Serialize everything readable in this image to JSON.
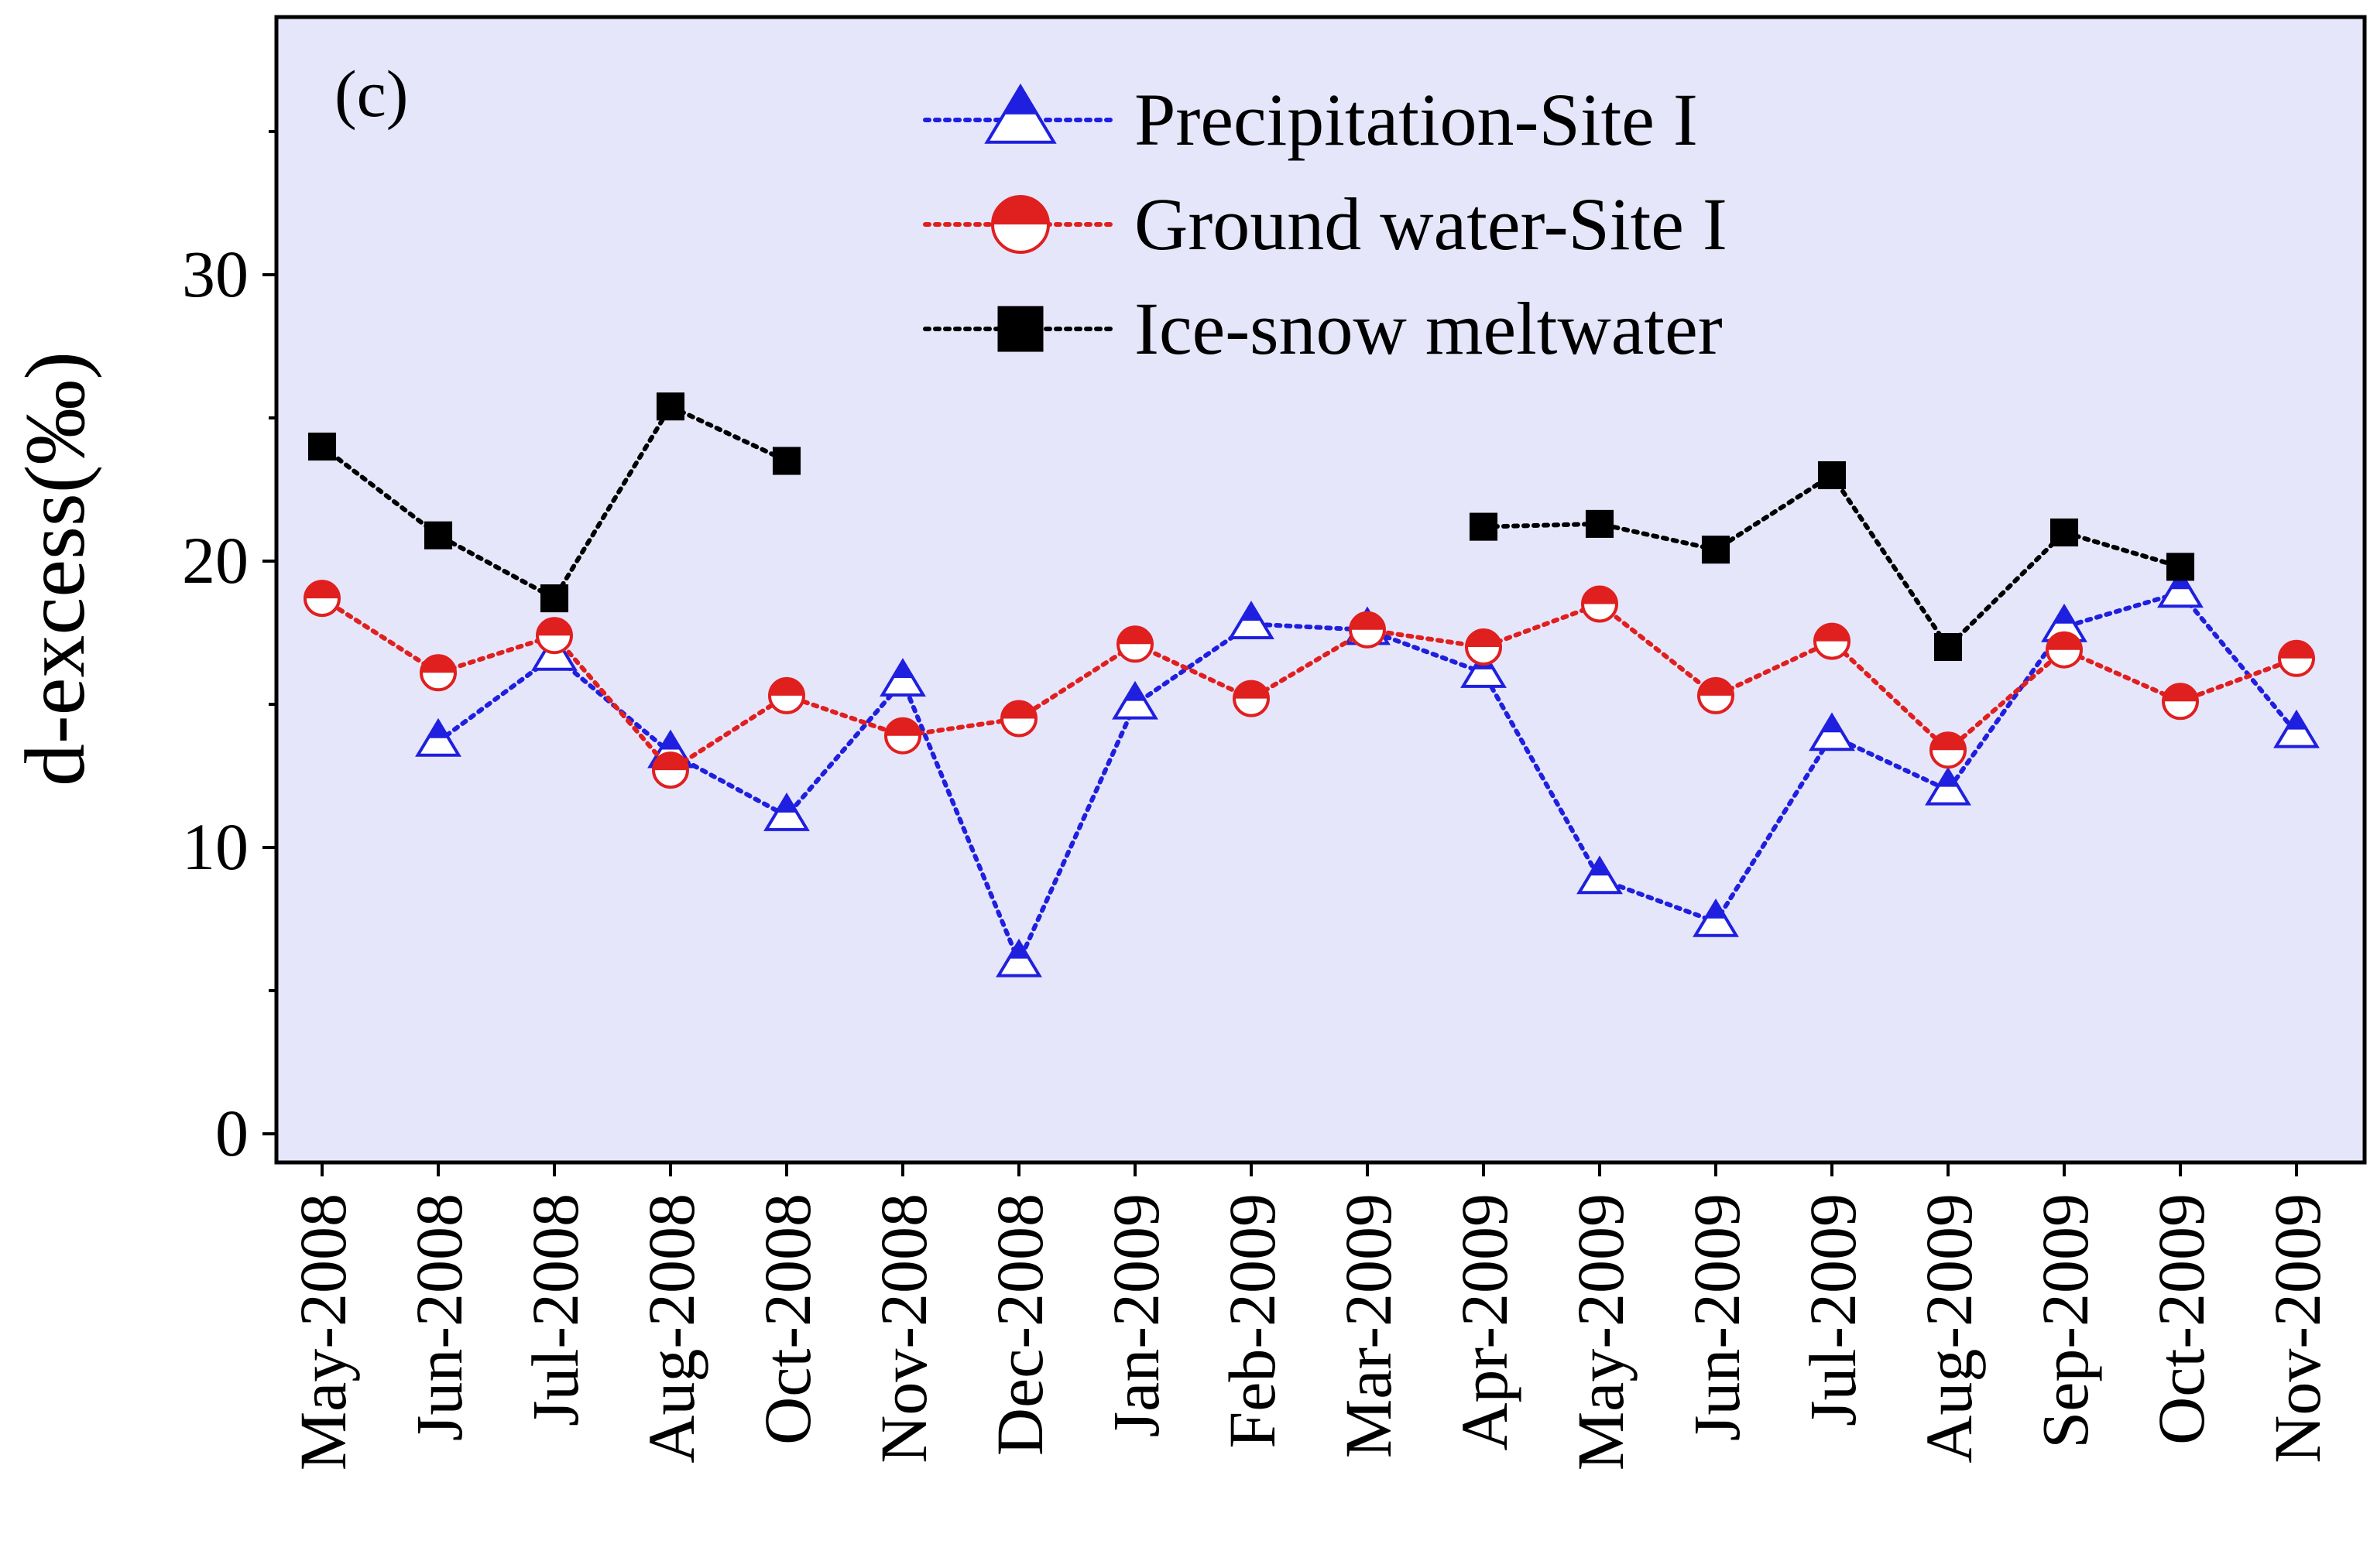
{
  "chart_data": {
    "type": "line",
    "panel_label": "(c)",
    "title": "",
    "xlabel": "",
    "ylabel": "d-excess(‰)",
    "ylim": [
      -1,
      39
    ],
    "yticks": [
      0,
      10,
      20,
      30
    ],
    "ytick_labels": [
      "0",
      "10",
      "20",
      "30"
    ],
    "yminor": [
      5,
      15,
      25,
      35
    ],
    "grid": false,
    "legend_position": "top-center",
    "categories": [
      "May-2008",
      "Jun-2008",
      "Jul-2008",
      "Aug-2008",
      "Oct-2008",
      "Nov-2008",
      "Dec-2008",
      "Jan-2009",
      "Feb-2009",
      "Mar-2009",
      "Apr-2009",
      "May-2009",
      "Jun-2009",
      "Jul-2009",
      "Aug-2009",
      "Sep-2009",
      "Oct-2009",
      "Nov-2009"
    ],
    "series": [
      {
        "name": "Precipitation-Site I",
        "color": "#1f1fe0",
        "marker": "half-triangle",
        "values": [
          null,
          13.7,
          16.7,
          13.3,
          11.1,
          15.8,
          6.0,
          15.0,
          17.8,
          17.6,
          16.1,
          8.9,
          7.4,
          13.9,
          12.0,
          17.7,
          18.9,
          14.0
        ]
      },
      {
        "name": "Ground water-Site I",
        "color": "#e01f1f",
        "marker": "half-circle",
        "values": [
          18.7,
          16.1,
          17.4,
          12.7,
          15.3,
          13.9,
          14.5,
          17.1,
          15.2,
          17.6,
          17.0,
          18.5,
          15.3,
          17.2,
          13.4,
          16.9,
          15.1,
          16.6
        ]
      },
      {
        "name": "Ice-snow meltwater",
        "color": "#000000",
        "marker": "square",
        "values": [
          24.0,
          20.9,
          18.7,
          25.4,
          23.5,
          null,
          null,
          null,
          null,
          null,
          21.2,
          21.3,
          20.4,
          23.0,
          17.0,
          21.0,
          19.8,
          null
        ]
      }
    ]
  }
}
